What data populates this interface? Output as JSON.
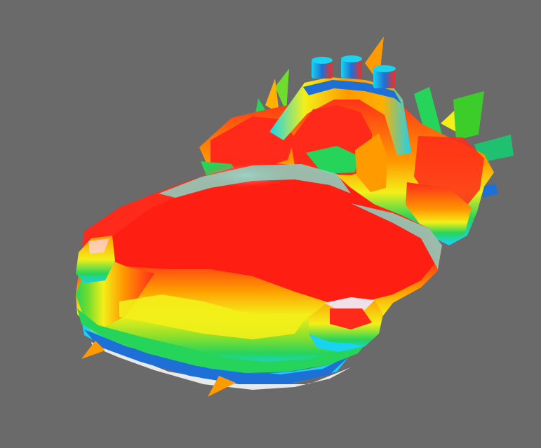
{
  "scene": {
    "background_color": "#6a6a6a",
    "colormap": [
      "#1a0aa8",
      "#1e6fd6",
      "#19d3f0",
      "#27d45a",
      "#b6e41a",
      "#f3ef19",
      "#ff9a00",
      "#ff1e12",
      "#f0e0e8",
      "#8ad6c4"
    ]
  }
}
